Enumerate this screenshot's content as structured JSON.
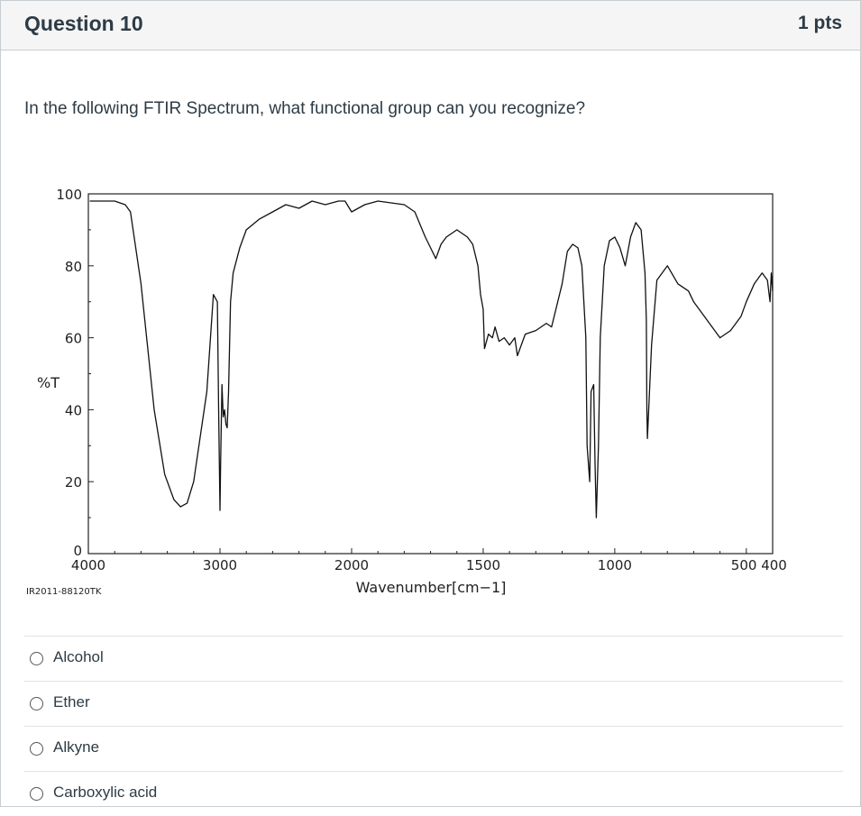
{
  "question": {
    "title": "Question 10",
    "points": "1 pts",
    "prompt": "In the following FTIR Spectrum, what functional group can you recognize?"
  },
  "spectrum": {
    "ylabel": "%T",
    "xlabel": "Wavenumber[cm−1]",
    "sample_id": "IR2011-88120TK",
    "y_ticks": [
      "100",
      "80",
      "60",
      "40",
      "20",
      "0"
    ],
    "x_ticks": [
      "4000",
      "3000",
      "2000",
      "1500",
      "1000",
      "500 400"
    ]
  },
  "chart_data": {
    "type": "line",
    "xlabel": "Wavenumber[cm−1]",
    "ylabel": "%T",
    "xlim": [
      4000,
      400
    ],
    "ylim": [
      0,
      100
    ],
    "x_scale": "piecewise: 4000–2000 and 2000–400 at different scales",
    "grid": false,
    "series": [
      {
        "x": [
          3990,
          3900,
          3800,
          3720,
          3680,
          3600,
          3500,
          3420,
          3350,
          3300,
          3250,
          3200,
          3100,
          3050,
          3020,
          3010,
          3000,
          2995,
          2985,
          2975,
          2965,
          2955,
          2945,
          2935,
          2920,
          2900,
          2850,
          2800,
          2700,
          2600,
          2500,
          2400,
          2300,
          2200,
          2100,
          2050,
          2000,
          1950,
          1900,
          1800,
          1760,
          1720,
          1700,
          1680,
          1660,
          1640,
          1600,
          1560,
          1540,
          1520,
          1510,
          1500,
          1495,
          1480,
          1465,
          1455,
          1440,
          1420,
          1400,
          1380,
          1370,
          1340,
          1300,
          1260,
          1240,
          1200,
          1180,
          1160,
          1140,
          1125,
          1110,
          1105,
          1095,
          1090,
          1080,
          1075,
          1070,
          1062,
          1055,
          1040,
          1020,
          1000,
          980,
          960,
          940,
          920,
          900,
          885,
          880,
          878,
          876,
          860,
          840,
          800,
          760,
          720,
          700,
          680,
          600,
          560,
          520,
          500,
          470,
          440,
          420,
          410,
          405,
          400
        ],
        "y": [
          98,
          98,
          98,
          97,
          95,
          75,
          40,
          22,
          15,
          13,
          14,
          20,
          45,
          72,
          70,
          40,
          12,
          25,
          47,
          38,
          40,
          36,
          35,
          45,
          70,
          78,
          85,
          90,
          93,
          95,
          97,
          96,
          98,
          97,
          98,
          98,
          95,
          97,
          98,
          97,
          95,
          88,
          85,
          82,
          86,
          88,
          90,
          88,
          86,
          80,
          72,
          68,
          57,
          61,
          60,
          63,
          59,
          60,
          58,
          60,
          55,
          61,
          62,
          64,
          63,
          75,
          84,
          86,
          85,
          80,
          60,
          30,
          20,
          45,
          47,
          25,
          10,
          30,
          60,
          80,
          87,
          88,
          85,
          80,
          88,
          92,
          90,
          78,
          65,
          40,
          32,
          58,
          76,
          80,
          75,
          73,
          70,
          68,
          60,
          62,
          66,
          70,
          75,
          78,
          76,
          70,
          78,
          73
        ]
      }
    ]
  },
  "answers": [
    {
      "label": "Alcohol"
    },
    {
      "label": "Ether"
    },
    {
      "label": "Alkyne"
    },
    {
      "label": "Carboxylic acid"
    }
  ]
}
